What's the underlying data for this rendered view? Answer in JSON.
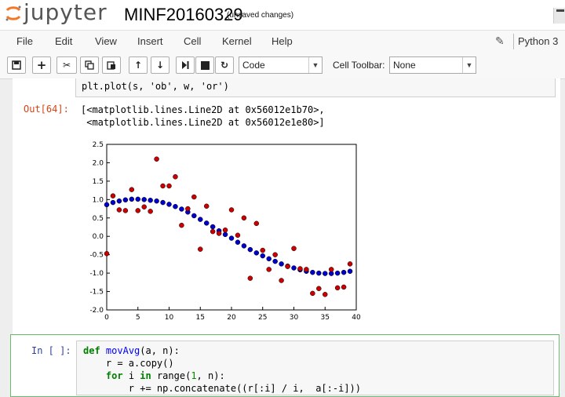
{
  "header": {
    "logo_text": "jupyter",
    "notebook_name": "MINF20160329",
    "save_status": "(unsaved changes)"
  },
  "menu": {
    "items": [
      "File",
      "Edit",
      "View",
      "Insert",
      "Cell",
      "Kernel",
      "Help"
    ],
    "kernel": "Python 3"
  },
  "toolbar": {
    "cell_type": "Code",
    "cell_toolbar_label": "Cell Toolbar:",
    "cell_toolbar_value": "None",
    "icons": [
      "save-icon",
      "plus-icon",
      "cut-icon",
      "copy-icon",
      "paste-icon",
      "arrow-up-icon",
      "arrow-down-icon",
      "step-forward-icon",
      "stop-icon",
      "restart-icon"
    ]
  },
  "cells": {
    "prev_code_tail": "plt.plot(s, 'ob', w, 'or')",
    "out_prompt": "Out[64]:",
    "out_text": "[<matplotlib.lines.Line2D at 0x56012e1b70>,\n <matplotlib.lines.Line2D at 0x56012e1e80>]",
    "in_prompt": "In [ ]:",
    "code_lines": [
      "def movAvg(a, n):",
      "    r = a.copy()",
      "    for i in range(1, n):",
      "        r += np.concatenate((r[:i] / i,  a[:-i]))"
    ]
  },
  "chart_data": {
    "type": "scatter",
    "title": "",
    "xlabel": "",
    "ylabel": "",
    "xlim": [
      0,
      40
    ],
    "ylim": [
      -2.0,
      2.5
    ],
    "xticks": [
      "0",
      "5",
      "10",
      "15",
      "20",
      "25",
      "30",
      "35",
      "40"
    ],
    "yticks": [
      "2.5",
      "2.0",
      "1.5",
      "1.0",
      "0.5",
      "0.0",
      "-0.5",
      "-1.0",
      "-1.5",
      "-2.0"
    ],
    "grid": false,
    "series": [
      {
        "color": "#0000cc",
        "x": [
          0,
          1,
          2,
          3,
          4,
          5,
          6,
          7,
          8,
          9,
          10,
          11,
          12,
          13,
          14,
          15,
          16,
          17,
          18,
          19,
          20,
          21,
          22,
          23,
          24,
          25,
          26,
          27,
          28,
          29,
          30,
          31,
          32,
          33,
          34,
          35,
          36,
          37,
          38,
          39
        ],
        "y": [
          0.86,
          0.92,
          0.96,
          0.99,
          1.01,
          1.01,
          1.0,
          0.98,
          0.96,
          0.92,
          0.87,
          0.81,
          0.74,
          0.66,
          0.56,
          0.46,
          0.36,
          0.26,
          0.15,
          0.05,
          -0.05,
          -0.16,
          -0.26,
          -0.36,
          -0.45,
          -0.53,
          -0.61,
          -0.68,
          -0.75,
          -0.81,
          -0.86,
          -0.91,
          -0.95,
          -0.98,
          -1.0,
          -1.01,
          -1.01,
          -1.0,
          -0.98,
          -0.95
        ]
      },
      {
        "color": "#cc0000",
        "x": [
          0,
          1,
          2,
          3,
          4,
          5,
          6,
          7,
          8,
          9,
          10,
          11,
          12,
          13,
          14,
          15,
          16,
          17,
          18,
          19,
          20,
          21,
          22,
          23,
          24,
          25,
          26,
          27,
          28,
          29,
          30,
          31,
          32,
          33,
          34,
          35,
          36,
          37,
          38,
          39
        ],
        "y": [
          -0.47,
          1.1,
          0.72,
          0.7,
          1.27,
          0.7,
          0.8,
          0.68,
          2.1,
          1.37,
          1.37,
          1.62,
          0.3,
          0.75,
          1.07,
          -0.35,
          0.82,
          0.13,
          0.08,
          0.17,
          0.72,
          0.03,
          0.5,
          -1.14,
          0.35,
          -0.38,
          -0.9,
          -0.5,
          -1.2,
          -0.82,
          -0.33,
          -0.88,
          -0.9,
          -1.55,
          -1.42,
          -1.58,
          -0.9,
          -1.4,
          -1.38,
          -0.75
        ]
      }
    ]
  }
}
